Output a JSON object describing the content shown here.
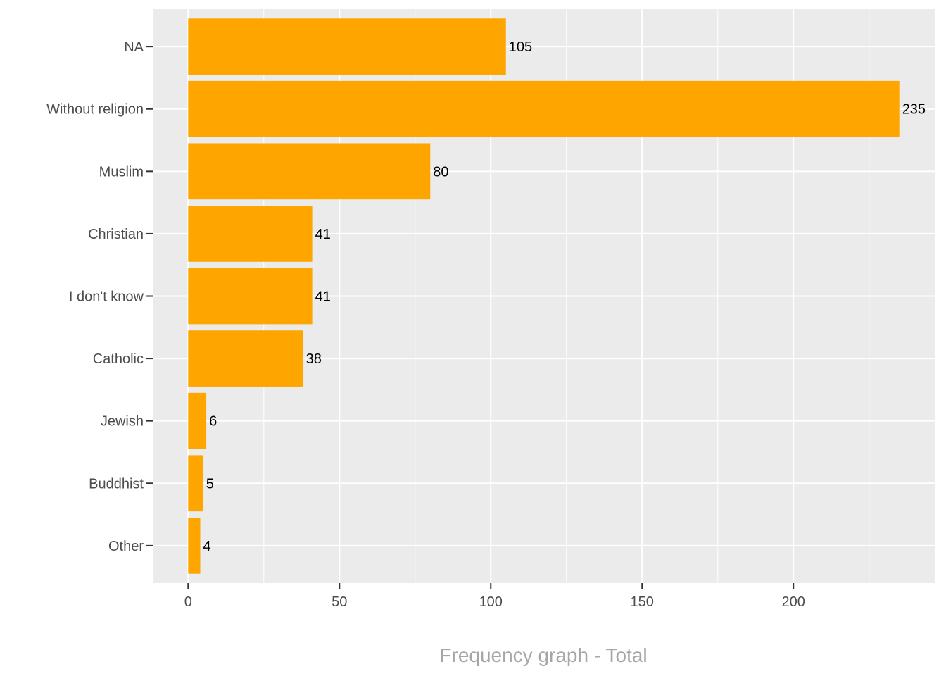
{
  "chart_data": {
    "type": "bar",
    "orientation": "horizontal",
    "categories": [
      "NA",
      "Without religion",
      "Muslim",
      "Christian",
      "I don't know",
      "Catholic",
      "Jewish",
      "Buddhist",
      "Other"
    ],
    "values": [
      105,
      235,
      80,
      41,
      41,
      38,
      6,
      5,
      4
    ],
    "data_labels": [
      "105",
      "235",
      "80",
      "41",
      "41",
      "38",
      "6",
      "5",
      "4"
    ],
    "xlabel": "Frequency graph - Total",
    "ylabel": "",
    "xlim": [
      -11.7,
      246.7
    ],
    "x_ticks": [
      0,
      50,
      100,
      150,
      200
    ],
    "x_tick_labels": [
      "0",
      "50",
      "100",
      "150",
      "200"
    ],
    "grid": true,
    "legend": "none",
    "colors": {
      "bar": "#FFA500",
      "panel_background": "#EBEBEB",
      "grid": "#FFFFFF"
    }
  }
}
